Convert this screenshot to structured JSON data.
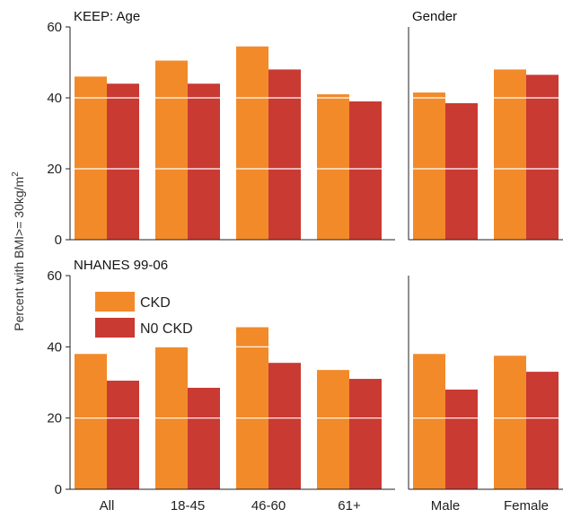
{
  "chart_data": {
    "type": "bar",
    "ylabel_text": "Percent with BMI>= 30kg/m",
    "ylabel_sup": "2",
    "ylim": [
      0,
      60
    ],
    "yticks": [
      "0",
      "20",
      "40",
      "60"
    ],
    "grid": "horizontal white lines",
    "legend_placement": "top-left of bottom-left panel",
    "colors": {
      "CKD": "#f28a2a",
      "NO CKD": "#c93a33"
    },
    "series_names": [
      "CKD",
      "N0 CKD"
    ],
    "panels": [
      {
        "title": "KEEP: Age",
        "categories": [
          "All",
          "18-45",
          "46-60",
          "61+"
        ],
        "series": [
          {
            "name": "CKD",
            "values": [
              46,
              50.5,
              54.5,
              41
            ]
          },
          {
            "name": "N0 CKD",
            "values": [
              44,
              44,
              48,
              39
            ]
          }
        ]
      },
      {
        "title": "Gender",
        "categories": [
          "Male",
          "Female"
        ],
        "series": [
          {
            "name": "CKD",
            "values": [
              41.5,
              48
            ]
          },
          {
            "name": "N0 CKD",
            "values": [
              38.5,
              46.5
            ]
          }
        ]
      },
      {
        "title": "NHANES 99-06",
        "categories": [
          "All",
          "18-45",
          "46-60",
          "61+"
        ],
        "series": [
          {
            "name": "CKD",
            "values": [
              38,
              40,
              45.5,
              33.5
            ]
          },
          {
            "name": "N0 CKD",
            "values": [
              30.5,
              28.5,
              35.5,
              31
            ]
          }
        ]
      },
      {
        "title": "",
        "categories": [
          "Male",
          "Female"
        ],
        "series": [
          {
            "name": "CKD",
            "values": [
              38,
              37.5
            ]
          },
          {
            "name": "N0 CKD",
            "values": [
              28,
              33
            ]
          }
        ]
      }
    ]
  }
}
